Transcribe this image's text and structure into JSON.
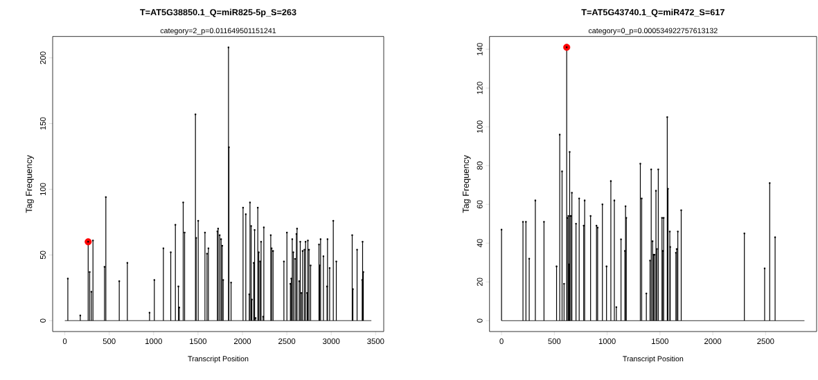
{
  "chart_data": [
    {
      "type": "lollipop",
      "title": "T=AT5G38850.1_Q=miR825-5p_S=263",
      "subtitle": "category=2_p=0.011649501151241",
      "xlabel": "Transcript Position",
      "ylabel": "Tag Frequency",
      "xlim": [
        -137,
        3591
      ],
      "ylim": [
        -8.3,
        216.3
      ],
      "xticks": [
        0,
        500,
        1000,
        1500,
        2000,
        2500,
        3000,
        3500
      ],
      "yticks": [
        0,
        50,
        100,
        150,
        200
      ],
      "series": [
        {
          "color": "#000000",
          "marker": "circle",
          "x": [
            34,
            174,
            263,
            280,
            299,
            317,
            447,
            462,
            613,
            704,
            954,
            1008,
            1110,
            1193,
            1245,
            1279,
            1289,
            1333,
            1349,
            1471,
            1479,
            1502,
            1578,
            1601,
            1617,
            1718,
            1726,
            1744,
            1760,
            1773,
            1783,
            1843,
            1848,
            1872,
            2007,
            2038,
            2077,
            2085,
            2098,
            2106,
            2127,
            2137,
            2148,
            2173,
            2184,
            2199,
            2210,
            2233,
            2241,
            2319,
            2329,
            2345,
            2467,
            2501,
            2540,
            2550,
            2561,
            2573,
            2592,
            2608,
            2615,
            2639,
            2651,
            2665,
            2678,
            2698,
            2711,
            2729,
            2737,
            2750,
            2768,
            2862,
            2869,
            2880,
            2912,
            2953,
            2958,
            2982,
            3023,
            3057,
            3236,
            3244,
            3291,
            3349,
            3353,
            3361
          ],
          "values": [
            32,
            4,
            60,
            37,
            22,
            61,
            41,
            94,
            30,
            44,
            6,
            31,
            55,
            52,
            73,
            26,
            10,
            90,
            67,
            157,
            63,
            76,
            67,
            51,
            55,
            68,
            70,
            65,
            62,
            57,
            31,
            208,
            132,
            29,
            86,
            81,
            20,
            90,
            72,
            16,
            44,
            69,
            2,
            86,
            52,
            45,
            60,
            3,
            71,
            65,
            55,
            53,
            45,
            67,
            28,
            32,
            62,
            52,
            47,
            66,
            70,
            30,
            60,
            21,
            53,
            54,
            60,
            21,
            61,
            54,
            42,
            58,
            42,
            62,
            49,
            26,
            62,
            40,
            76,
            45,
            65,
            24,
            54,
            31,
            60,
            37
          ]
        },
        {
          "type": "line",
          "color": "#000000",
          "x": [
            0,
            3452
          ],
          "values": [
            0,
            0
          ]
        },
        {
          "type": "scatter",
          "color": "#ff0000",
          "marker": "circle",
          "x": [
            263
          ],
          "values": [
            60
          ]
        }
      ]
    },
    {
      "type": "lollipop",
      "title": "T=AT5G43740.1_Q=miR472_S=617",
      "subtitle": "category=0_p=0.000534922757613132",
      "xlabel": "Transcript Position",
      "ylabel": "Tag Frequency",
      "xlim": [
        -114,
        2983
      ],
      "ylim": [
        -5.6,
        146.6
      ],
      "xticks": [
        0,
        500,
        1000,
        1500,
        2000,
        2500
      ],
      "yticks": [
        0,
        20,
        40,
        60,
        80,
        100,
        120,
        140
      ],
      "series": [
        {
          "color": "#000000",
          "marker": "circle",
          "x": [
            0,
            203,
            231,
            262,
            320,
            402,
            521,
            551,
            573,
            592,
            617,
            622,
            633,
            640,
            645,
            655,
            666,
            705,
            735,
            778,
            787,
            843,
            899,
            910,
            955,
            994,
            1035,
            1068,
            1087,
            1131,
            1168,
            1174,
            1181,
            1314,
            1327,
            1371,
            1406,
            1417,
            1430,
            1438,
            1449,
            1462,
            1471,
            1484,
            1519,
            1526,
            1535,
            1569,
            1576,
            1593,
            1597,
            1651,
            1658,
            1669,
            1701,
            2299,
            2491,
            2539,
            2590
          ],
          "values": [
            47,
            51,
            51,
            32,
            62,
            51,
            28,
            96,
            77,
            19,
            141,
            53,
            54,
            29,
            87,
            54,
            66,
            50,
            63,
            49,
            62,
            54,
            49,
            48,
            60,
            28,
            72,
            62,
            7,
            42,
            36,
            59,
            53,
            81,
            63,
            14,
            31,
            78,
            41,
            34,
            34,
            67,
            37,
            78,
            53,
            36,
            53,
            105,
            68,
            46,
            38,
            35,
            37,
            46,
            57,
            45,
            27,
            71,
            43
          ]
        },
        {
          "type": "line",
          "color": "#000000",
          "x": [
            0,
            2868
          ],
          "values": [
            0,
            0
          ]
        },
        {
          "type": "scatter",
          "color": "#ff0000",
          "marker": "circle",
          "x": [
            617
          ],
          "values": [
            141
          ]
        }
      ]
    }
  ]
}
